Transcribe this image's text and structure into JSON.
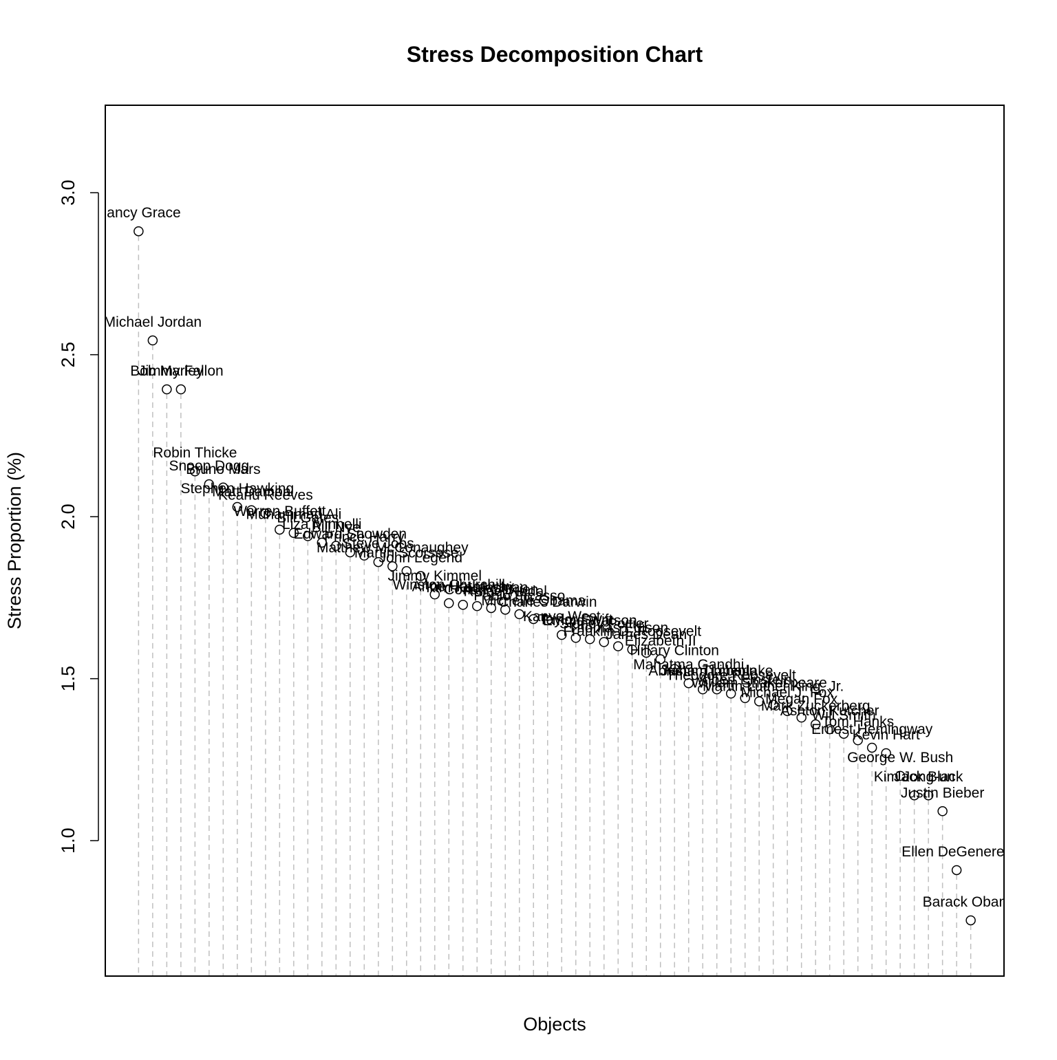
{
  "chart_data": {
    "type": "dot",
    "title": "Stress Decomposition Chart",
    "x_label": "Objects",
    "y_label": "Stress Proportion (%)",
    "categories": [
      "Nancy Grace",
      "Michael Jordan",
      "Bob Marley",
      "Jimmy Fallon",
      "Robin Thicke",
      "Snoop Dogg",
      "Bruno Mars",
      "Stephen Hawking",
      "Matt Damon",
      "Keanu Reeves",
      "Warren Buffett",
      "Muhammad Ali",
      "Bill Gates",
      "Liza Minnelli",
      "Bill Nye",
      "Edward Snowden",
      "Prince Harry",
      "Steve Jobs",
      "Matthew McConaughey",
      "Martin Scorsese",
      "John Legend",
      "Jimmy Kimmel",
      "Winston Churchill",
      "Anne Hathaway",
      "Kim Kardashian",
      "Conan O'Brien",
      "Rafael Nadal",
      "Pablo Picasso",
      "Michelle Obama",
      "Charles Darwin",
      "Kanye West",
      "Taylor Swift",
      "Emma Watson",
      "Sidney Poitier",
      "Thomas Edison",
      "Franklin D. Roosevelt",
      "James Dean",
      "Elizabeth II",
      "Hillary Clinton",
      "Mahatma Gandhi",
      "Abraham Lincoln",
      "Justin Timberlake",
      "Theodore Roosevelt",
      "Albert Einstein",
      "William Shakespeare",
      "Martin Luther King, Jr.",
      "Michael J. Fox",
      "Megan Fox",
      "Mark Zuckerberg",
      "Ashton Kutcher",
      "Will Smith",
      "Tom Hanks",
      "Ernest Hemingway",
      "Kevin Hart",
      "George W. Bush",
      "Kim Jong-un",
      "Jack Black",
      "Justin Bieber",
      "Ellen DeGeneres",
      "Barack Obama"
    ],
    "values": [
      2.881,
      2.544,
      2.393,
      2.393,
      2.14,
      2.1,
      2.09,
      2.03,
      2.02,
      2.01,
      1.96,
      1.95,
      1.94,
      1.92,
      1.91,
      1.89,
      1.88,
      1.86,
      1.847,
      1.832,
      1.817,
      1.76,
      1.733,
      1.728,
      1.724,
      1.718,
      1.713,
      1.699,
      1.684,
      1.68,
      1.635,
      1.626,
      1.622,
      1.613,
      1.6,
      1.59,
      1.58,
      1.56,
      1.53,
      1.486,
      1.467,
      1.467,
      1.454,
      1.44,
      1.43,
      1.42,
      1.4,
      1.38,
      1.359,
      1.344,
      1.33,
      1.31,
      1.287,
      1.27,
      1.2,
      1.14,
      1.14,
      1.091,
      0.909,
      0.754
    ],
    "ylim": [
      0.582,
      3.27
    ],
    "xlim": [
      -1.36,
      62.36
    ],
    "yticks": [
      {
        "value": 1,
        "label": "1.0"
      },
      1.5,
      {
        "value": 2,
        "label": "2.0"
      },
      2.5,
      {
        "value": 3,
        "label": "3.0"
      }
    ],
    "point_color": "#000000",
    "line_color": "#bfbfbf"
  }
}
